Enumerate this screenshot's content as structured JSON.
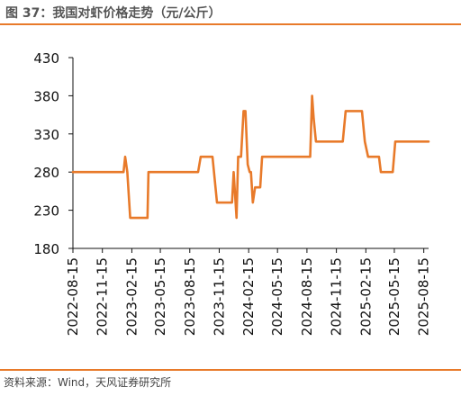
{
  "title": "图 37：我国对虾价格走势（元/公斤）",
  "source": "资料来源：Wind，天风证券研究所",
  "colors": {
    "accent": "#e87a2a",
    "line": "#e87a2a",
    "axis": "#111111"
  },
  "chart_data": {
    "type": "line",
    "title": "",
    "xlabel": "",
    "ylabel": "",
    "ylim": [
      180,
      430
    ],
    "yticks": [
      "430",
      "380",
      "330",
      "280",
      "230",
      "180"
    ],
    "xlim": [
      "2022-08-15",
      "2025-08-30"
    ],
    "xticks": [
      "2022-08-15",
      "2022-11-15",
      "2023-02-15",
      "2023-05-15",
      "2023-08-15",
      "2023-11-15",
      "2024-02-15",
      "2024-05-15",
      "2024-08-15",
      "2024-11-15",
      "2025-02-15",
      "2025-05-15",
      "2025-08-15"
    ],
    "grid": false,
    "legend": "none",
    "series": [
      {
        "name": "",
        "points": [
          [
            "2022-08-15",
            280
          ],
          [
            "2023-01-20",
            280
          ],
          [
            "2023-01-25",
            300
          ],
          [
            "2023-02-01",
            280
          ],
          [
            "2023-02-10",
            220
          ],
          [
            "2023-04-05",
            220
          ],
          [
            "2023-04-08",
            280
          ],
          [
            "2023-09-10",
            280
          ],
          [
            "2023-09-18",
            300
          ],
          [
            "2023-10-25",
            300
          ],
          [
            "2023-11-08",
            240
          ],
          [
            "2023-12-25",
            240
          ],
          [
            "2023-12-30",
            280
          ],
          [
            "2024-01-08",
            220
          ],
          [
            "2024-01-13",
            300
          ],
          [
            "2024-01-22",
            300
          ],
          [
            "2024-01-30",
            360
          ],
          [
            "2024-02-05",
            360
          ],
          [
            "2024-02-12",
            290
          ],
          [
            "2024-02-18",
            280
          ],
          [
            "2024-02-22",
            280
          ],
          [
            "2024-02-28",
            240
          ],
          [
            "2024-03-06",
            260
          ],
          [
            "2024-03-22",
            260
          ],
          [
            "2024-03-28",
            300
          ],
          [
            "2024-08-25",
            300
          ],
          [
            "2024-08-31",
            380
          ],
          [
            "2024-09-05",
            350
          ],
          [
            "2024-09-12",
            320
          ],
          [
            "2024-12-05",
            320
          ],
          [
            "2024-12-14",
            360
          ],
          [
            "2025-02-03",
            360
          ],
          [
            "2025-02-12",
            320
          ],
          [
            "2025-02-22",
            300
          ],
          [
            "2025-03-28",
            300
          ],
          [
            "2025-04-03",
            280
          ],
          [
            "2025-05-10",
            280
          ],
          [
            "2025-05-18",
            320
          ],
          [
            "2025-08-30",
            320
          ]
        ]
      }
    ]
  }
}
